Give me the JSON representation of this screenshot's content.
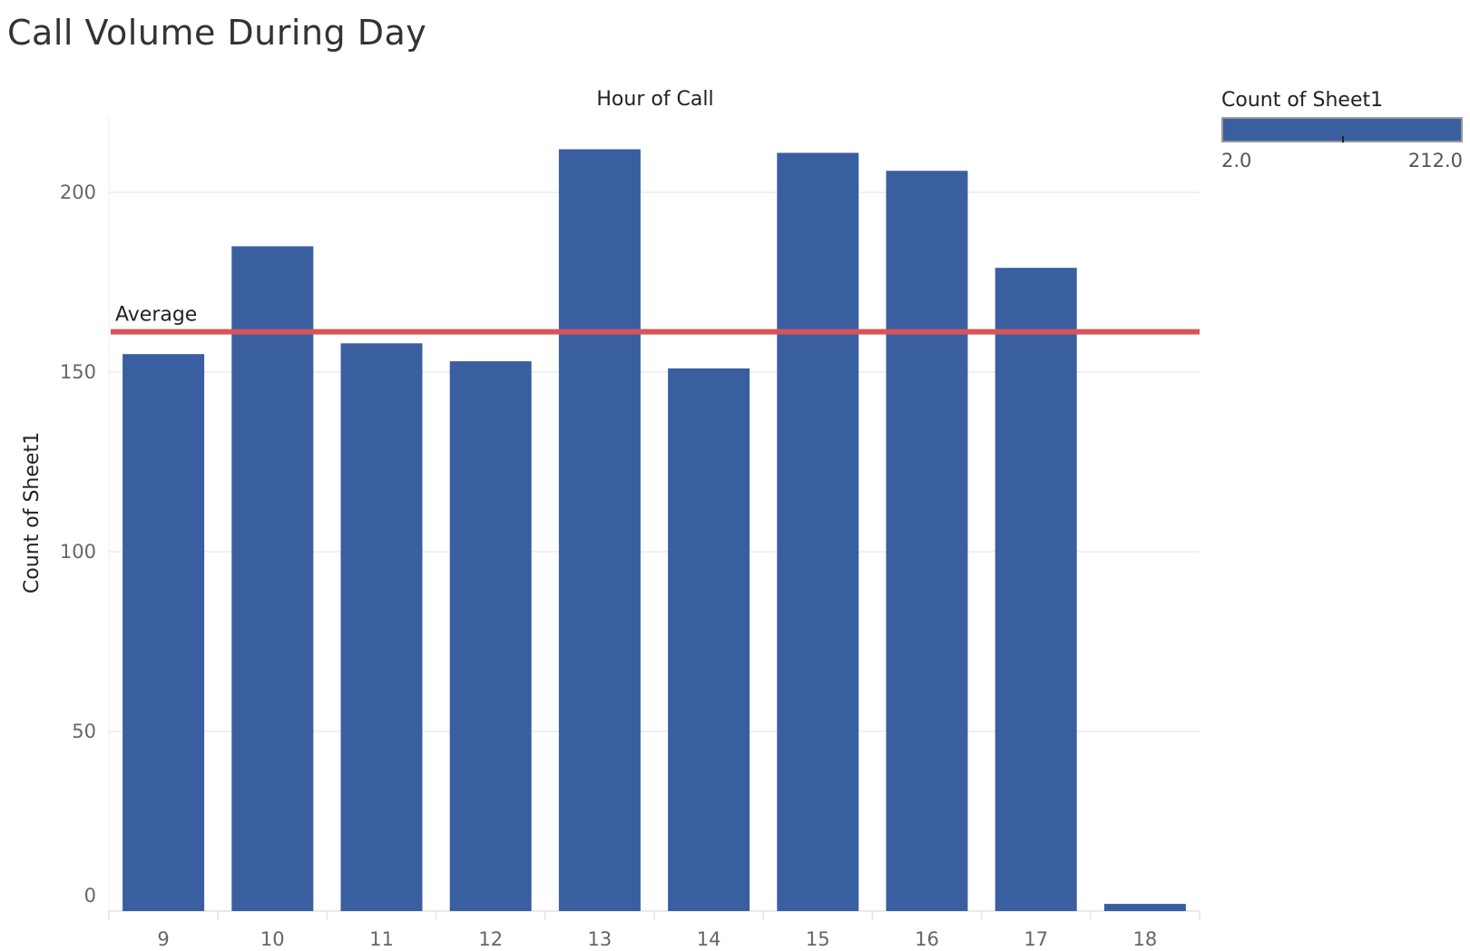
{
  "title": "Call Volume During Day",
  "legend": {
    "title": "Count of Sheet1",
    "min_label": "2.0",
    "max_label": "212.0",
    "color": "#3A5FA0"
  },
  "chart_data": {
    "type": "bar",
    "title": "Call Volume During Day",
    "xlabel": "Hour of Call",
    "ylabel": "Count of Sheet1",
    "categories": [
      "9",
      "10",
      "11",
      "12",
      "13",
      "14",
      "15",
      "16",
      "17",
      "18"
    ],
    "values": [
      155,
      185,
      158,
      153,
      212,
      151,
      211,
      206,
      179,
      2
    ],
    "ylim": [
      0,
      220
    ],
    "yticks": [
      0,
      50,
      100,
      150,
      200
    ],
    "grid": true,
    "bar_color": "#3A5FA0",
    "reference_line": {
      "label": "Average",
      "value": 161.2,
      "color": "#D9545A"
    }
  }
}
